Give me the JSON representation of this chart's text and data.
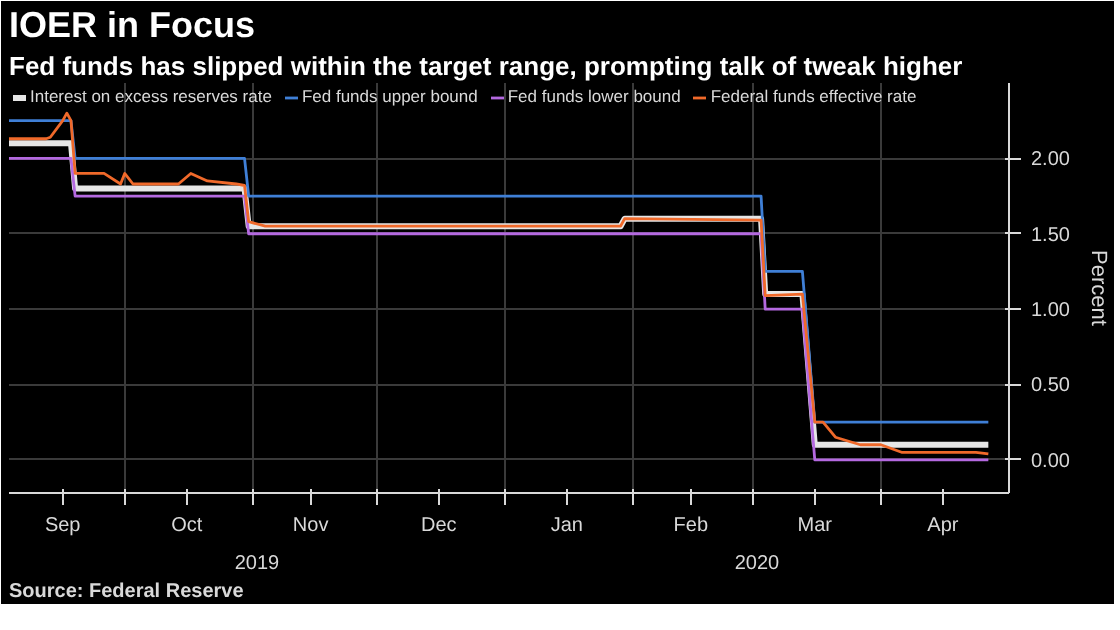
{
  "chart_data": {
    "type": "line",
    "title": "IOER in Focus",
    "subtitle": "Fed funds has slipped within the target range, prompting talk of tweak higher",
    "ylabel": "Percent",
    "annotations": [
      "2019",
      "2020",
      "Source: Federal Reserve"
    ],
    "xlim": [
      "2019-09-03",
      "2020-05-02"
    ],
    "ylim": [
      -0.22,
      2.5
    ],
    "xticks": [
      {
        "value": "2019-09-16",
        "label": "Sep"
      },
      {
        "value": "2019-10-01",
        "label": null
      },
      {
        "value": "2019-10-16",
        "label": "Oct"
      },
      {
        "value": "2019-11-01",
        "label": null
      },
      {
        "value": "2019-11-15",
        "label": "Nov"
      },
      {
        "value": "2019-12-01",
        "label": null
      },
      {
        "value": "2019-12-16",
        "label": "Dec"
      },
      {
        "value": "2020-01-01",
        "label": null
      },
      {
        "value": "2020-01-16",
        "label": "Jan"
      },
      {
        "value": "2020-02-01",
        "label": null
      },
      {
        "value": "2020-02-15",
        "label": "Feb"
      },
      {
        "value": "2020-03-01",
        "label": null
      },
      {
        "value": "2020-03-16",
        "label": "Mar"
      },
      {
        "value": "2020-04-01",
        "label": null
      },
      {
        "value": "2020-04-16",
        "label": "Apr"
      }
    ],
    "yticks": [
      {
        "value": 0,
        "label": "0.00"
      },
      {
        "value": 0.5,
        "label": "0.50"
      },
      {
        "value": 1,
        "label": "1.00"
      },
      {
        "value": 1.5,
        "label": "1.50"
      },
      {
        "value": 2,
        "label": "2.00"
      }
    ],
    "grid": true,
    "legend": "top left",
    "line_style": "solid",
    "series": [
      {
        "name": "Interest on excess reserves rate",
        "color": "#e6e6e6",
        "x": [
          "2019-09-03",
          "2019-09-18",
          "2019-09-19",
          "2019-10-30",
          "2019-10-31",
          "2020-01-29",
          "2020-01-30",
          "2020-03-03",
          "2020-03-04",
          "2020-03-13",
          "2020-03-16",
          "2020-04-27"
        ],
        "values": [
          2.1,
          2.1,
          1.8,
          1.8,
          1.55,
          1.55,
          1.6,
          1.6,
          1.1,
          1.1,
          0.1,
          0.1
        ]
      },
      {
        "name": "Fed funds upper bound",
        "color": "#3f7fd6",
        "x": [
          "2019-09-03",
          "2019-09-18",
          "2019-09-19",
          "2019-10-30",
          "2019-10-31",
          "2020-03-03",
          "2020-03-04",
          "2020-03-13",
          "2020-03-16",
          "2020-04-27"
        ],
        "values": [
          2.25,
          2.25,
          2.0,
          2.0,
          1.75,
          1.75,
          1.25,
          1.25,
          0.25,
          0.25
        ]
      },
      {
        "name": "Fed funds lower bound",
        "color": "#b469e0",
        "x": [
          "2019-09-03",
          "2019-09-18",
          "2019-09-19",
          "2019-10-30",
          "2019-10-31",
          "2020-03-03",
          "2020-03-04",
          "2020-03-13",
          "2020-03-16",
          "2020-04-27"
        ],
        "values": [
          2.0,
          2.0,
          1.75,
          1.75,
          1.5,
          1.5,
          1.0,
          1.0,
          0.0,
          0.0
        ]
      },
      {
        "name": "Federal funds effective rate",
        "color": "#f0692a",
        "x": [
          "2019-09-03",
          "2019-09-12",
          "2019-09-13",
          "2019-09-16",
          "2019-09-17",
          "2019-09-18",
          "2019-09-19",
          "2019-09-26",
          "2019-09-30",
          "2019-10-01",
          "2019-10-03",
          "2019-10-14",
          "2019-10-17",
          "2019-10-21",
          "2019-10-28",
          "2019-10-30",
          "2019-10-31",
          "2019-11-04",
          "2020-01-29",
          "2020-01-30",
          "2020-03-03",
          "2020-03-04",
          "2020-03-13",
          "2020-03-16",
          "2020-03-18",
          "2020-03-21",
          "2020-03-27",
          "2020-04-01",
          "2020-04-06",
          "2020-04-24",
          "2020-04-27"
        ],
        "values": [
          2.13,
          2.13,
          2.14,
          2.25,
          2.3,
          2.25,
          1.9,
          1.9,
          1.83,
          1.9,
          1.83,
          1.83,
          1.9,
          1.85,
          1.83,
          1.82,
          1.58,
          1.55,
          1.55,
          1.6,
          1.59,
          1.09,
          1.1,
          0.25,
          0.25,
          0.15,
          0.1,
          0.1,
          0.05,
          0.05,
          0.04
        ]
      }
    ]
  }
}
